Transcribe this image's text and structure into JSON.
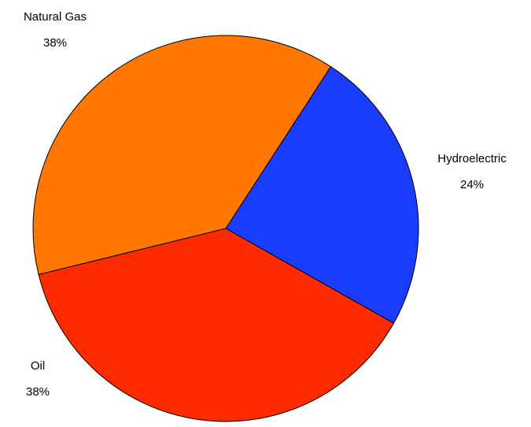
{
  "chart_data": {
    "type": "pie",
    "categories": [
      "Hydroelectric",
      "Oil",
      "Natural Gas"
    ],
    "values": [
      24,
      38,
      38
    ],
    "value_labels": [
      "24%",
      "38%",
      "38%"
    ],
    "colors": [
      "#1a3cff",
      "#ff2a00",
      "#ff7700"
    ]
  }
}
